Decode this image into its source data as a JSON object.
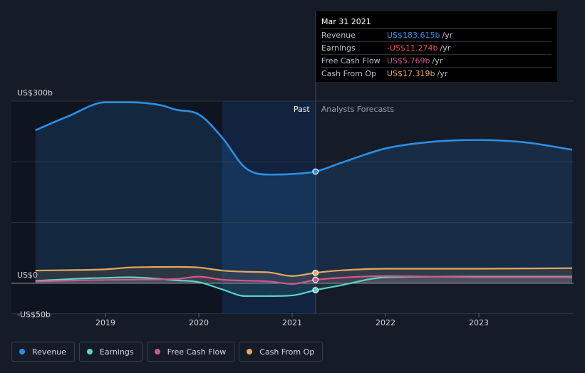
{
  "chart_data": {
    "type": "area",
    "x_ticks": [
      "2019",
      "2020",
      "2021",
      "2022",
      "2023"
    ],
    "y_ticks": [
      "US$300b",
      "US$0",
      "-US$50b"
    ],
    "ylim": [
      -50,
      300
    ],
    "divider_labels": {
      "past": "Past",
      "forecast": "Analysts Forecasts"
    },
    "divider_x": 2021.25,
    "highlight_x_range": [
      2020.25,
      2021.25
    ],
    "grid": true,
    "series": [
      {
        "name": "Revenue",
        "color": "#2b8fe6",
        "points": [
          [
            2018.25,
            252
          ],
          [
            2018.6,
            275
          ],
          [
            2019.0,
            298
          ],
          [
            2019.25,
            298
          ],
          [
            2019.6,
            293
          ],
          [
            2019.75,
            286
          ],
          [
            2020.0,
            278
          ],
          [
            2020.25,
            240
          ],
          [
            2020.5,
            190
          ],
          [
            2020.75,
            179
          ],
          [
            2021.0,
            180
          ],
          [
            2021.25,
            184
          ],
          [
            2021.5,
            197
          ],
          [
            2022.0,
            222
          ],
          [
            2022.5,
            233
          ],
          [
            2023.0,
            236
          ],
          [
            2023.5,
            232
          ],
          [
            2024.0,
            220
          ]
        ]
      },
      {
        "name": "Earnings",
        "color": "#58d6c8",
        "points": [
          [
            2018.25,
            4
          ],
          [
            2018.75,
            8
          ],
          [
            2019.0,
            9
          ],
          [
            2019.25,
            10
          ],
          [
            2019.75,
            5
          ],
          [
            2020.0,
            2
          ],
          [
            2020.25,
            -10
          ],
          [
            2020.5,
            -21
          ],
          [
            2020.75,
            -21
          ],
          [
            2021.0,
            -20
          ],
          [
            2021.25,
            -11.274
          ],
          [
            2021.5,
            -4
          ],
          [
            2022.0,
            10
          ],
          [
            2022.5,
            11
          ],
          [
            2023.0,
            11
          ],
          [
            2024.0,
            11
          ]
        ]
      },
      {
        "name": "Free Cash Flow",
        "color": "#d1578f",
        "points": [
          [
            2018.25,
            3
          ],
          [
            2018.75,
            5
          ],
          [
            2019.25,
            6
          ],
          [
            2019.75,
            7
          ],
          [
            2020.0,
            11
          ],
          [
            2020.25,
            6
          ],
          [
            2020.75,
            3
          ],
          [
            2021.0,
            -1
          ],
          [
            2021.25,
            5.769
          ],
          [
            2021.5,
            9
          ],
          [
            2022.0,
            12
          ],
          [
            2022.5,
            11
          ],
          [
            2023.0,
            10
          ],
          [
            2024.0,
            10
          ]
        ]
      },
      {
        "name": "Cash From Op",
        "color": "#e8a85a",
        "points": [
          [
            2018.25,
            21
          ],
          [
            2018.75,
            22
          ],
          [
            2019.0,
            23
          ],
          [
            2019.25,
            26
          ],
          [
            2019.75,
            27
          ],
          [
            2020.0,
            26
          ],
          [
            2020.25,
            21
          ],
          [
            2020.5,
            19
          ],
          [
            2020.75,
            18
          ],
          [
            2021.0,
            12
          ],
          [
            2021.25,
            17.319
          ],
          [
            2021.5,
            21
          ],
          [
            2022.0,
            24
          ],
          [
            2022.5,
            24
          ],
          [
            2023.0,
            24
          ],
          [
            2024.0,
            25
          ]
        ]
      }
    ],
    "markers_at": 2021.25
  },
  "tooltip": {
    "date": "Mar 31 2021",
    "rows": [
      {
        "label": "Revenue",
        "value": "US$183.615b",
        "unit": "/yr",
        "color": "#2b8fe6"
      },
      {
        "label": "Earnings",
        "value": "-US$11.274b",
        "unit": "/yr",
        "color": "#e94a4a"
      },
      {
        "label": "Free Cash Flow",
        "value": "US$5.769b",
        "unit": "/yr",
        "color": "#d1578f"
      },
      {
        "label": "Cash From Op",
        "value": "US$17.319b",
        "unit": "/yr",
        "color": "#e8a85a"
      }
    ]
  },
  "legend": [
    {
      "label": "Revenue",
      "color": "#2b8fe6"
    },
    {
      "label": "Earnings",
      "color": "#58d6c8"
    },
    {
      "label": "Free Cash Flow",
      "color": "#d1578f"
    },
    {
      "label": "Cash From Op",
      "color": "#e8a85a"
    }
  ]
}
